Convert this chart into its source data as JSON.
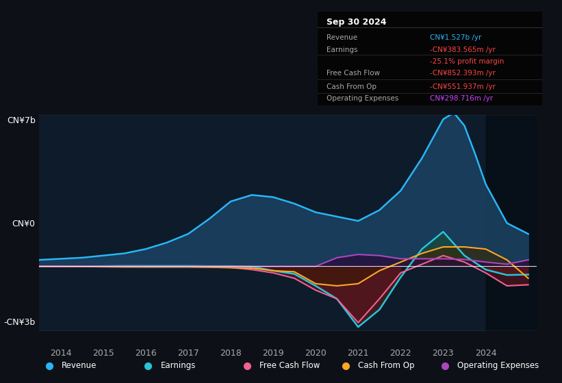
{
  "bg_color": "#0d1117",
  "plot_bg_color": "#0d1b2a",
  "title_box": {
    "date": "Sep 30 2024",
    "rows": [
      {
        "label": "Revenue",
        "value": "CN¥1.527b /yr",
        "value_color": "#4da6ff"
      },
      {
        "label": "Earnings",
        "value": "-CN¥383.565m /yr",
        "value_color": "#ff4444"
      },
      {
        "label": "",
        "value": "-25.1% profit margin",
        "value_color": "#ff4444"
      },
      {
        "label": "Free Cash Flow",
        "value": "-CN¥852.393m /yr",
        "value_color": "#ff4444"
      },
      {
        "label": "Cash From Op",
        "value": "-CN¥551.937m /yr",
        "value_color": "#ff4444"
      },
      {
        "label": "Operating Expenses",
        "value": "CN¥298.716m /yr",
        "value_color": "#cc44ff"
      }
    ]
  },
  "ylabel_top": "CN¥7b",
  "ylabel_zero": "CN¥0",
  "ylabel_bottom": "-CN¥3b",
  "ylim": [
    -3000000000,
    7000000000
  ],
  "xlim_start": 2013.5,
  "xlim_end": 2025.2,
  "xticks": [
    2014,
    2015,
    2016,
    2017,
    2018,
    2019,
    2020,
    2021,
    2022,
    2023,
    2024
  ],
  "shaded_start": 2024.0,
  "legend": [
    {
      "label": "Revenue",
      "color": "#29b6f6"
    },
    {
      "label": "Earnings",
      "color": "#26c6da"
    },
    {
      "label": "Free Cash Flow",
      "color": "#f06292"
    },
    {
      "label": "Cash From Op",
      "color": "#ffa726"
    },
    {
      "label": "Operating Expenses",
      "color": "#ab47bc"
    }
  ],
  "revenue": {
    "color": "#29b6f6",
    "x": [
      2013.5,
      2014,
      2014.5,
      2015,
      2015.5,
      2016,
      2016.5,
      2017,
      2017.5,
      2018,
      2018.5,
      2019,
      2019.5,
      2020,
      2020.5,
      2021,
      2021.5,
      2022,
      2022.5,
      2023,
      2023.25,
      2023.5,
      2023.75,
      2024,
      2024.5,
      2025.0
    ],
    "y": [
      300000000.0,
      350000000.0,
      400000000.0,
      500000000.0,
      600000000.0,
      800000000.0,
      1100000000.0,
      1500000000.0,
      2200000000.0,
      3000000000.0,
      3300000000.0,
      3200000000.0,
      2900000000.0,
      2500000000.0,
      2300000000.0,
      2100000000.0,
      2600000000.0,
      3500000000.0,
      5000000000.0,
      6800000000.0,
      7100000000.0,
      6500000000.0,
      5200000000.0,
      3800000000.0,
      2000000000.0,
      1500000000.0
    ]
  },
  "earnings": {
    "color": "#26c6da",
    "x": [
      2013.5,
      2014,
      2014.5,
      2015,
      2015.5,
      2016,
      2016.5,
      2017,
      2017.5,
      2018,
      2018.5,
      2019,
      2019.5,
      2020,
      2020.5,
      2021,
      2021.5,
      2022,
      2022.5,
      2023,
      2023.5,
      2024,
      2024.5,
      2025.0
    ],
    "y": [
      0,
      0,
      0,
      10000000.0,
      20000000.0,
      20000000.0,
      20000000.0,
      20000000.0,
      10000000.0,
      10000000.0,
      -10000000.0,
      -200000000.0,
      -350000000.0,
      -900000000.0,
      -1500000000.0,
      -2800000000.0,
      -2000000000.0,
      -500000000.0,
      800000000.0,
      1600000000.0,
      500000000.0,
      -150000000.0,
      -400000000.0,
      -380000000.0
    ]
  },
  "free_cash_flow": {
    "color": "#f06292",
    "x": [
      2013.5,
      2014,
      2014.5,
      2015,
      2015.5,
      2016,
      2016.5,
      2017,
      2017.5,
      2018,
      2018.5,
      2019,
      2019.5,
      2020,
      2020.5,
      2021,
      2021.5,
      2022,
      2022.5,
      2023,
      2023.5,
      2024,
      2024.5,
      2025.0
    ],
    "y": [
      0,
      -10000000.0,
      -10000000.0,
      -10000000.0,
      -10000000.0,
      -20000000.0,
      -20000000.0,
      -20000000.0,
      -30000000.0,
      -50000000.0,
      -150000000.0,
      -300000000.0,
      -550000000.0,
      -1100000000.0,
      -1500000000.0,
      -2600000000.0,
      -1500000000.0,
      -300000000.0,
      100000000.0,
      500000000.0,
      200000000.0,
      -300000000.0,
      -900000000.0,
      -850000000.0
    ]
  },
  "cash_from_op": {
    "color": "#ffa726",
    "x": [
      2013.5,
      2014,
      2014.5,
      2015,
      2015.5,
      2016,
      2016.5,
      2017,
      2017.5,
      2018,
      2018.5,
      2019,
      2019.5,
      2020,
      2020.5,
      2021,
      2021.5,
      2022,
      2022.5,
      2023,
      2023.5,
      2024,
      2024.5,
      2025.0
    ],
    "y": [
      5000000.0,
      0,
      -10000000.0,
      -20000000.0,
      -30000000.0,
      -30000000.0,
      -30000000.0,
      -30000000.0,
      -40000000.0,
      -60000000.0,
      -80000000.0,
      -200000000.0,
      -250000000.0,
      -800000000.0,
      -900000000.0,
      -800000000.0,
      -200000000.0,
      200000000.0,
      600000000.0,
      900000000.0,
      900000000.0,
      800000000.0,
      300000000.0,
      -550000000.0
    ]
  },
  "operating_expenses": {
    "color": "#ab47bc",
    "x": [
      2013.5,
      2014,
      2014.5,
      2015,
      2015.5,
      2016,
      2016.5,
      2017,
      2017.5,
      2018,
      2018.5,
      2019,
      2019.5,
      2020,
      2020.5,
      2021,
      2021.5,
      2022,
      2022.5,
      2023,
      2023.5,
      2024,
      2024.5,
      2025.0
    ],
    "y": [
      0,
      0,
      0,
      0,
      0,
      0,
      0,
      0,
      0,
      0,
      0,
      0,
      0,
      0,
      400000000.0,
      550000000.0,
      500000000.0,
      350000000.0,
      350000000.0,
      350000000.0,
      320000000.0,
      200000000.0,
      100000000.0,
      300000000.0
    ]
  }
}
